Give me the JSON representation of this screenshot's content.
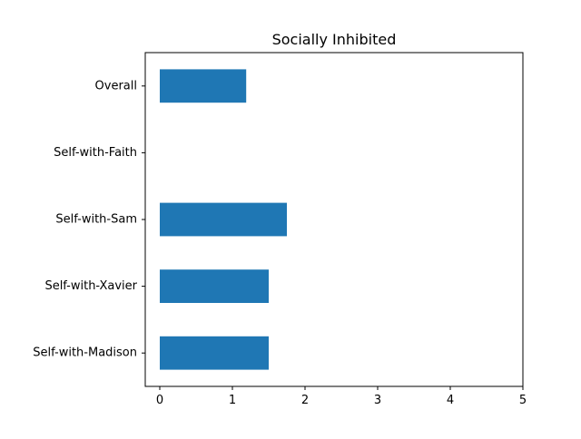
{
  "chart_data": {
    "type": "bar",
    "orientation": "horizontal",
    "title": "Socially Inhibited",
    "xlabel": "",
    "ylabel": "",
    "categories": [
      "Overall",
      "Self-with-Faith",
      "Self-with-Sam",
      "Self-with-Xavier",
      "Self-with-Madison"
    ],
    "values": [
      1.19,
      0,
      1.75,
      1.5,
      1.5
    ],
    "xlim": [
      -0.2,
      5
    ],
    "xticks": [
      "0",
      "1",
      "2",
      "3",
      "4",
      "5"
    ],
    "grid": false,
    "legend": "none",
    "colors": {
      "bar": "#1f77b4",
      "axis": "#000000",
      "background": "#ffffff"
    }
  }
}
